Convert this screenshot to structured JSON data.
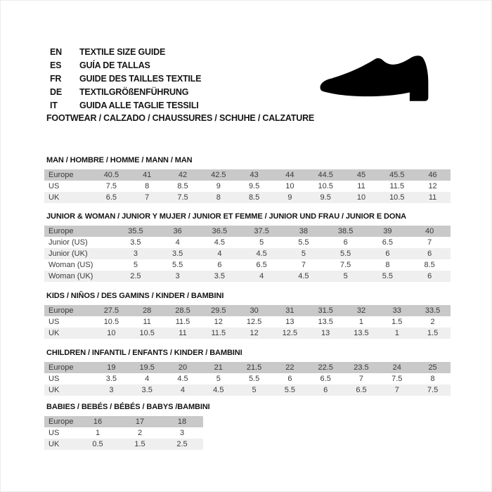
{
  "languages": [
    {
      "code": "EN",
      "label": "TEXTILE SIZE GUIDE"
    },
    {
      "code": "ES",
      "label": "GUÍA DE TALLAS"
    },
    {
      "code": "FR",
      "label": "GUIDE DES TAILLES TEXTILE"
    },
    {
      "code": "DE",
      "label": "TEXTILGRÖßENFÜHRUNG"
    },
    {
      "code": "IT",
      "label": "GUIDA ALLE TAGLIE TESSILI"
    }
  ],
  "category_heading": "FOOTWEAR / CALZADO / CHAUSSURES / SCHUHE / CALZATURE",
  "shoe_icon": "dress-shoe-silhouette",
  "colors": {
    "header_row_bg": "#c9c9c9",
    "stripe_row_bg": "#efefef",
    "cell_text": "#3b3b3b",
    "title_text": "#141414",
    "shoe": "#000000"
  },
  "sections": [
    {
      "id": "man",
      "title": "MAN / HOMBRE / HOMME / MANN / MAN",
      "rows": [
        {
          "label": "Europe",
          "values": [
            "40.5",
            "41",
            "42",
            "42.5",
            "43",
            "44",
            "44.5",
            "45",
            "45.5",
            "46"
          ]
        },
        {
          "label": "US",
          "values": [
            "7.5",
            "8",
            "8.5",
            "9",
            "9.5",
            "10",
            "10.5",
            "11",
            "11.5",
            "12"
          ]
        },
        {
          "label": "UK",
          "values": [
            "6.5",
            "7",
            "7.5",
            "8",
            "8.5",
            "9",
            "9.5",
            "10",
            "10.5",
            "11"
          ]
        }
      ]
    },
    {
      "id": "junior-woman",
      "title": "JUNIOR & WOMAN / JUNIOR Y MUJER / JUNIOR ET FEMME / JUNIOR UND FRAU / JUNIOR E DONA",
      "rows": [
        {
          "label": "Europe",
          "values": [
            "35.5",
            "36",
            "36.5",
            "37.5",
            "38",
            "38.5",
            "39",
            "40"
          ]
        },
        {
          "label": "Junior (US)",
          "values": [
            "3.5",
            "4",
            "4.5",
            "5",
            "5.5",
            "6",
            "6.5",
            "7"
          ]
        },
        {
          "label": "Junior (UK)",
          "values": [
            "3",
            "3.5",
            "4",
            "4.5",
            "5",
            "5.5",
            "6",
            "6"
          ]
        },
        {
          "label": "Woman (US)",
          "values": [
            "5",
            "5.5",
            "6",
            "6.5",
            "7",
            "7.5",
            "8",
            "8.5"
          ]
        },
        {
          "label": "Woman (UK)",
          "values": [
            "2.5",
            "3",
            "3.5",
            "4",
            "4.5",
            "5",
            "5.5",
            "6"
          ]
        }
      ]
    },
    {
      "id": "kids",
      "title": "KIDS / NIÑOS / DES GAMINS / KINDER / BAMBINI",
      "rows": [
        {
          "label": "Europe",
          "values": [
            "27.5",
            "28",
            "28.5",
            "29.5",
            "30",
            "31",
            "31.5",
            "32",
            "33",
            "33.5"
          ]
        },
        {
          "label": "US",
          "values": [
            "10.5",
            "11",
            "11.5",
            "12",
            "12.5",
            "13",
            "13.5",
            "1",
            "1.5",
            "2"
          ]
        },
        {
          "label": "UK",
          "values": [
            "10",
            "10.5",
            "11",
            "11.5",
            "12",
            "12.5",
            "13",
            "13.5",
            "1",
            "1.5"
          ]
        }
      ]
    },
    {
      "id": "children",
      "title": "CHILDREN / INFANTIL / ENFANTS / KINDER / BAMBINI",
      "rows": [
        {
          "label": "Europe",
          "values": [
            "19",
            "19.5",
            "20",
            "21",
            "21.5",
            "22",
            "22.5",
            "23.5",
            "24",
            "25"
          ]
        },
        {
          "label": "US",
          "values": [
            "3.5",
            "4",
            "4.5",
            "5",
            "5.5",
            "6",
            "6.5",
            "7",
            "7.5",
            "8"
          ]
        },
        {
          "label": "UK",
          "values": [
            "3",
            "3.5",
            "4",
            "4.5",
            "5",
            "5.5",
            "6",
            "6.5",
            "7",
            "7.5"
          ]
        }
      ]
    },
    {
      "id": "babies",
      "title": "BABIES / BEBÉS / BÉBÉS / BABYS /BAMBINI",
      "rows": [
        {
          "label": "Europe",
          "values": [
            "16",
            "17",
            "18"
          ]
        },
        {
          "label": "US",
          "values": [
            "1",
            "2",
            "3"
          ]
        },
        {
          "label": "UK",
          "values": [
            "0.5",
            "1.5",
            "2.5"
          ]
        }
      ]
    }
  ]
}
